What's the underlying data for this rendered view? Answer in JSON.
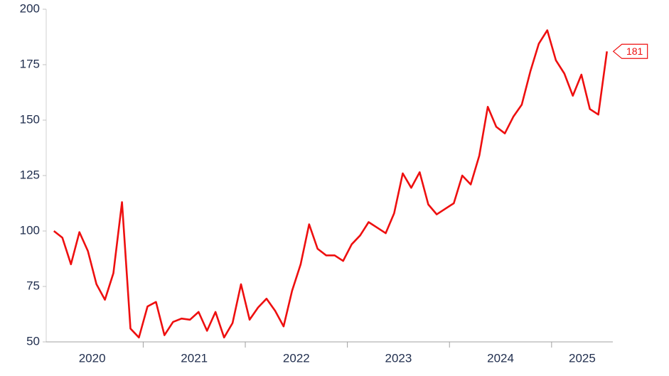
{
  "chart_data": {
    "type": "line",
    "x": [
      2020.125,
      2020.208,
      2020.292,
      2020.375,
      2020.458,
      2020.542,
      2020.625,
      2020.708,
      2020.792,
      2020.875,
      2020.958,
      2021.042,
      2021.125,
      2021.208,
      2021.292,
      2021.375,
      2021.458,
      2021.542,
      2021.625,
      2021.708,
      2021.792,
      2021.875,
      2021.958,
      2022.042,
      2022.125,
      2022.208,
      2022.292,
      2022.375,
      2022.458,
      2022.542,
      2022.625,
      2022.708,
      2022.792,
      2022.875,
      2022.958,
      2023.042,
      2023.125,
      2023.208,
      2023.292,
      2023.375,
      2023.458,
      2023.542,
      2023.625,
      2023.708,
      2023.792,
      2023.875,
      2023.958,
      2024.042,
      2024.125,
      2024.208,
      2024.292,
      2024.375,
      2024.458,
      2024.542,
      2024.625,
      2024.708,
      2024.792,
      2024.875,
      2024.958,
      2025.042,
      2025.125,
      2025.208,
      2025.292,
      2025.375,
      2025.458,
      2025.542
    ],
    "series": [
      {
        "color": "#ee0f0f",
        "values": [
          100,
          97,
          85,
          99.5,
          91,
          76,
          69,
          81,
          113,
          56,
          52,
          66,
          68,
          53,
          59,
          60.5,
          60,
          63.5,
          55,
          63.5,
          52,
          58.5,
          76,
          60,
          65.5,
          69.5,
          64,
          57,
          73,
          85,
          103,
          92,
          89,
          89,
          86.5,
          94,
          98,
          104,
          101.5,
          99,
          108,
          126,
          119.5,
          126.5,
          112,
          107.5,
          110,
          112.5,
          125,
          121,
          134,
          156,
          147,
          144,
          151.5,
          157,
          172,
          184.5,
          190.5,
          177,
          171,
          161,
          170.5,
          155,
          152.5,
          181
        ]
      }
    ],
    "xlim": [
      2020.05,
      2025.6
    ],
    "xticks": [
      {
        "value": 2020.5,
        "label": "2020"
      },
      {
        "value": 2021.5,
        "label": "2021"
      },
      {
        "value": 2022.5,
        "label": "2022"
      },
      {
        "value": 2023.5,
        "label": "2023"
      },
      {
        "value": 2024.5,
        "label": "2024"
      },
      {
        "value": 2025.3,
        "label": "2025"
      }
    ],
    "ylim": [
      50,
      200
    ],
    "yticks": [
      50,
      75,
      100,
      125,
      150,
      175,
      200
    ]
  }
}
